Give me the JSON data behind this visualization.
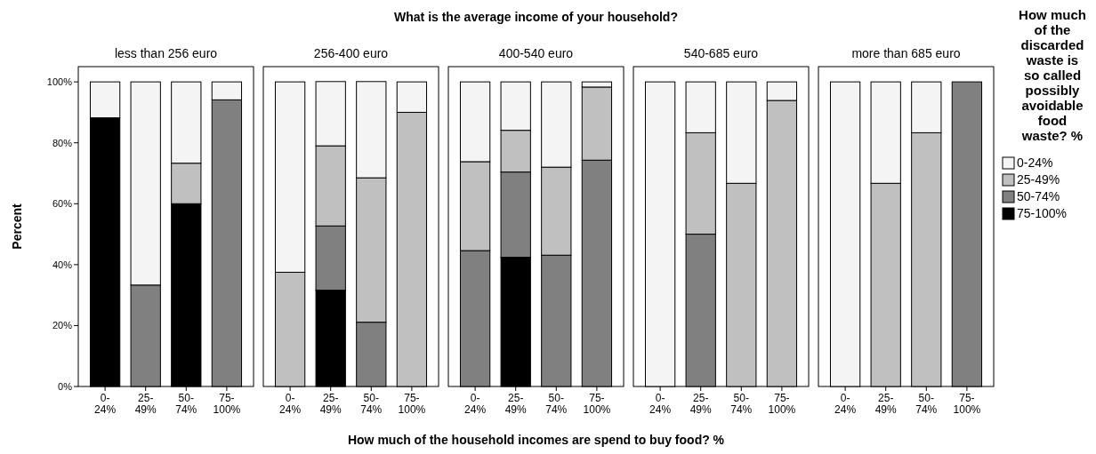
{
  "chart_data": [
    {
      "type": "bar",
      "stacked": true,
      "subtitle": "less than 256 euro",
      "ylabel": "Percent",
      "legend_title": "How much of the discarded waste is so called possibly avoidable food waste? %",
      "legend": "right",
      "categories": [
        "0-24%",
        "25-49%",
        "50-74%",
        "75-100%"
      ],
      "ylim": [
        0,
        105
      ],
      "yticks": [
        {
          "value": 0,
          "label": "0%"
        },
        {
          "value": 20,
          "label": "20%"
        },
        {
          "value": 40,
          "label": "40%"
        },
        {
          "value": 60,
          "label": "60%"
        },
        {
          "value": 80,
          "label": "80%"
        },
        {
          "value": 100,
          "label": "100%"
        }
      ],
      "series": [
        {
          "name": "75-100%",
          "color": "#000000",
          "values": [
            88.2,
            null,
            60,
            null
          ]
        },
        {
          "name": "50-74%",
          "color": "#808080",
          "values": [
            null,
            33.3,
            null,
            94.1
          ]
        },
        {
          "name": "25-49%",
          "color": "#c0c0c0",
          "values": [
            null,
            null,
            13.3,
            null
          ]
        },
        {
          "name": "0-24%",
          "color": "#f4f4f4",
          "values": [
            11.8,
            66.7,
            26.7,
            5.9
          ]
        }
      ]
    },
    {
      "type": "bar",
      "stacked": true,
      "subtitle": "256-400 euro",
      "categories": [
        "0-24%",
        "25-49%",
        "50-74%",
        "75-100%"
      ],
      "ylim": [
        0,
        105
      ],
      "tick_labels": "x",
      "series": [
        {
          "color": "#000000",
          "values": [
            null,
            31.6,
            null,
            null
          ]
        },
        {
          "color": "#808080",
          "values": [
            null,
            21.1,
            21.1,
            null
          ]
        },
        {
          "color": "#c0c0c0",
          "values": [
            37.5,
            26.3,
            47.4,
            90
          ]
        },
        {
          "color": "#f4f4f4",
          "values": [
            62.5,
            21.1,
            31.6,
            10
          ]
        }
      ]
    },
    {
      "type": "bar",
      "stacked": true,
      "title": "What is the average income of your household?",
      "subtitle": "400-540 euro",
      "xlabel": "How much of the household incomes are spend to buy food? %",
      "categories": [
        "0-24%",
        "25-49%",
        "50-74%",
        "75-100%"
      ],
      "ylim": [
        0,
        105
      ],
      "tick_labels": "x",
      "series": [
        {
          "color": "#000000",
          "values": [
            null,
            42.4,
            null,
            null
          ]
        },
        {
          "color": "#808080",
          "values": [
            44.6,
            28.0,
            43.1,
            74.3
          ]
        },
        {
          "color": "#c0c0c0",
          "values": [
            29.2,
            13.7,
            28.9,
            24.0
          ]
        },
        {
          "color": "#f4f4f4",
          "values": [
            26.2,
            15.9,
            28.0,
            1.7
          ]
        }
      ]
    },
    {
      "type": "bar",
      "stacked": true,
      "subtitle": "540-685 euro",
      "categories": [
        "0-24%",
        "25-49%",
        "50-74%",
        "75-100%"
      ],
      "ylim": [
        0,
        105
      ],
      "tick_labels": "x",
      "series": [
        {
          "color": "#808080",
          "values": [
            null,
            50,
            null,
            null
          ]
        },
        {
          "color": "#c0c0c0",
          "values": [
            null,
            33.3,
            66.7,
            93.9
          ]
        },
        {
          "color": "#f4f4f4",
          "values": [
            100,
            16.7,
            33.3,
            6.1
          ]
        }
      ]
    },
    {
      "type": "bar",
      "stacked": true,
      "subtitle": "more than 685 euro",
      "categories": [
        "0-24%",
        "25-49%",
        "50-74%",
        "75-100%"
      ],
      "ylim": [
        0,
        105
      ],
      "tick_labels": "x",
      "series": [
        {
          "color": "#808080",
          "values": [
            null,
            null,
            null,
            100
          ]
        },
        {
          "color": "#c0c0c0",
          "values": [
            null,
            66.7,
            83.3,
            null
          ]
        },
        {
          "color": "#f4f4f4",
          "values": [
            100,
            33.3,
            16.7,
            null
          ]
        }
      ]
    }
  ]
}
